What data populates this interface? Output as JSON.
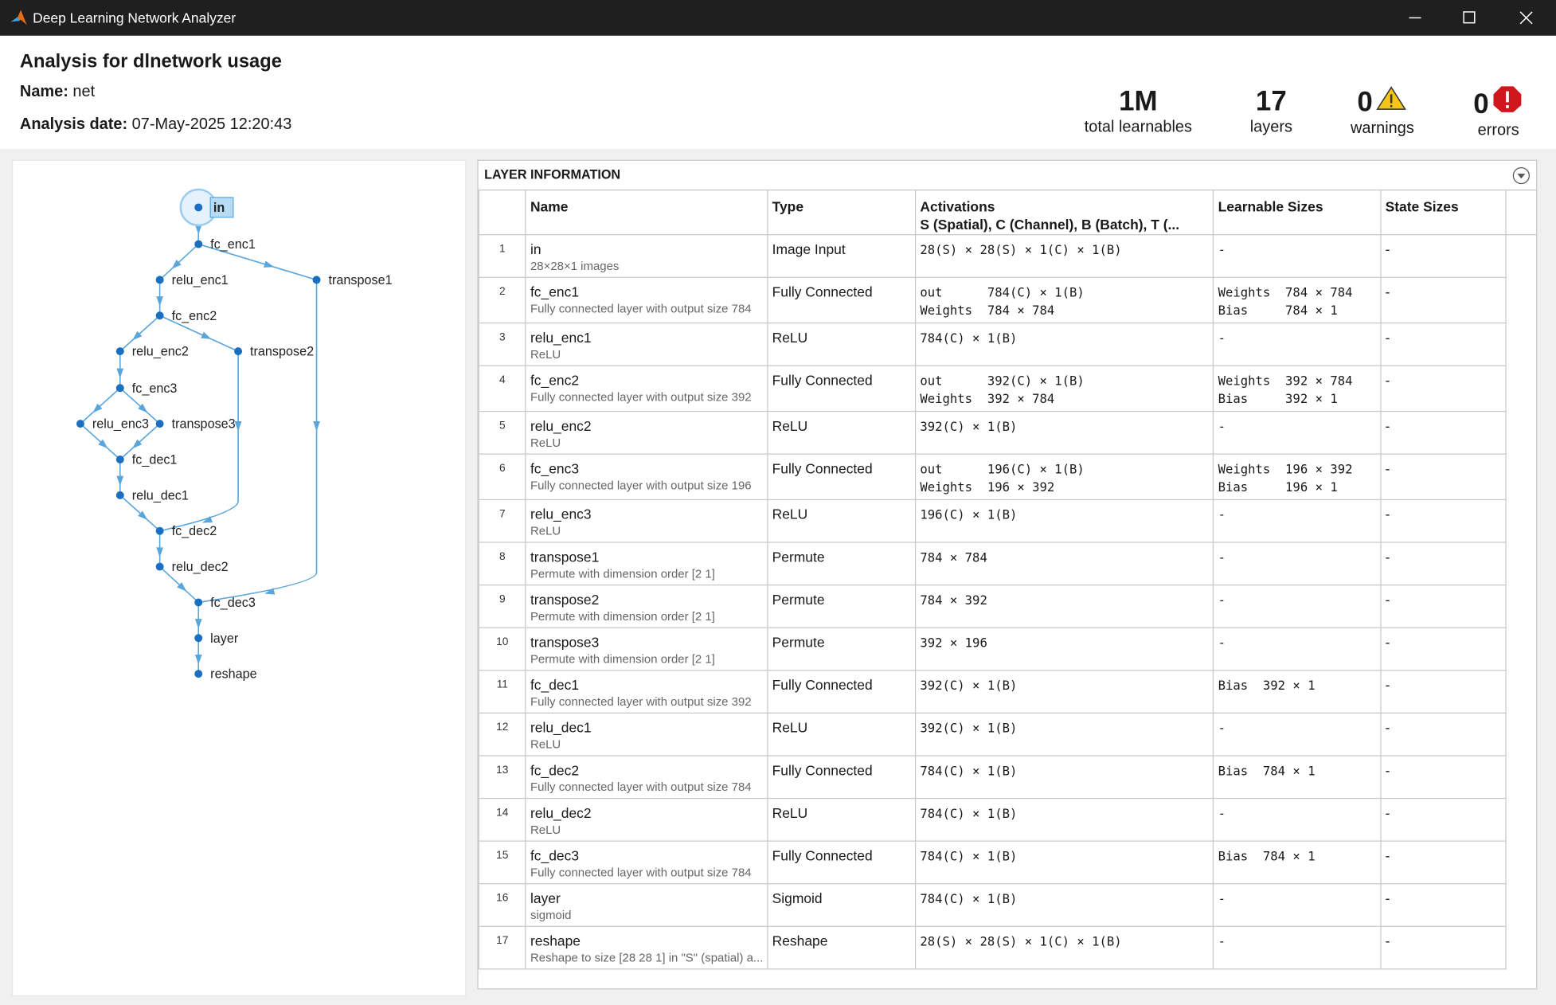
{
  "window": {
    "title": "Deep Learning Network Analyzer"
  },
  "header": {
    "title": "Analysis for dlnetwork usage",
    "name_label": "Name:",
    "name_value": "net",
    "date_label": "Analysis date:",
    "date_value": "07-May-2025 12:20:43"
  },
  "summary": [
    {
      "value": "1M",
      "label": "total learnables"
    },
    {
      "value": "17",
      "label": "layers"
    },
    {
      "value": "0",
      "label": "warnings"
    },
    {
      "value": "0",
      "label": "errors"
    }
  ],
  "graph": {
    "nodes": [
      "in",
      "fc_enc1",
      "relu_enc1",
      "transpose1",
      "fc_enc2",
      "relu_enc2",
      "transpose2",
      "fc_enc3",
      "relu_enc3",
      "transpose3",
      "fc_dec1",
      "relu_dec1",
      "fc_dec2",
      "relu_dec2",
      "fc_dec3",
      "layer",
      "reshape"
    ]
  },
  "table": {
    "title": "LAYER INFORMATION",
    "columns": {
      "name": "Name",
      "type": "Type",
      "activations": "Activations",
      "activations_sub": "S (Spatial), C (Channel), B (Batch), T (...",
      "learnables": "Learnable Sizes",
      "states": "State Sizes"
    },
    "rows": [
      {
        "index": 1,
        "name": "in",
        "description": "28×28×1 images",
        "type": "Image Input",
        "activations": [
          "28(S) × 28(S) × 1(C) × 1(B)"
        ],
        "learnables": [
          "-"
        ],
        "states": "-"
      },
      {
        "index": 2,
        "name": "fc_enc1",
        "description": "Fully connected layer with output size 784",
        "type": "Fully Connected",
        "activations": [
          "out      784(C) × 1(B)",
          "Weights  784 × 784"
        ],
        "learnables": [
          "Weights  784 × 784",
          "Bias     784 × 1"
        ],
        "states": "-"
      },
      {
        "index": 3,
        "name": "relu_enc1",
        "description": "ReLU",
        "type": "ReLU",
        "activations": [
          "784(C) × 1(B)"
        ],
        "learnables": [
          "-"
        ],
        "states": "-"
      },
      {
        "index": 4,
        "name": "fc_enc2",
        "description": "Fully connected layer with output size 392",
        "type": "Fully Connected",
        "activations": [
          "out      392(C) × 1(B)",
          "Weights  392 × 784"
        ],
        "learnables": [
          "Weights  392 × 784",
          "Bias     392 × 1"
        ],
        "states": "-"
      },
      {
        "index": 5,
        "name": "relu_enc2",
        "description": "ReLU",
        "type": "ReLU",
        "activations": [
          "392(C) × 1(B)"
        ],
        "learnables": [
          "-"
        ],
        "states": "-"
      },
      {
        "index": 6,
        "name": "fc_enc3",
        "description": "Fully connected layer with output size 196",
        "type": "Fully Connected",
        "activations": [
          "out      196(C) × 1(B)",
          "Weights  196 × 392"
        ],
        "learnables": [
          "Weights  196 × 392",
          "Bias     196 × 1"
        ],
        "states": "-"
      },
      {
        "index": 7,
        "name": "relu_enc3",
        "description": "ReLU",
        "type": "ReLU",
        "activations": [
          "196(C) × 1(B)"
        ],
        "learnables": [
          "-"
        ],
        "states": "-"
      },
      {
        "index": 8,
        "name": "transpose1",
        "description": "Permute with dimension order [2 1]",
        "type": "Permute",
        "activations": [
          "784 × 784"
        ],
        "learnables": [
          "-"
        ],
        "states": "-"
      },
      {
        "index": 9,
        "name": "transpose2",
        "description": "Permute with dimension order [2 1]",
        "type": "Permute",
        "activations": [
          "784 × 392"
        ],
        "learnables": [
          "-"
        ],
        "states": "-"
      },
      {
        "index": 10,
        "name": "transpose3",
        "description": "Permute with dimension order [2 1]",
        "type": "Permute",
        "activations": [
          "392 × 196"
        ],
        "learnables": [
          "-"
        ],
        "states": "-"
      },
      {
        "index": 11,
        "name": "fc_dec1",
        "description": "Fully connected layer with output size 392",
        "type": "Fully Connected",
        "activations": [
          "392(C) × 1(B)"
        ],
        "learnables": [
          "Bias  392 × 1"
        ],
        "states": "-"
      },
      {
        "index": 12,
        "name": "relu_dec1",
        "description": "ReLU",
        "type": "ReLU",
        "activations": [
          "392(C) × 1(B)"
        ],
        "learnables": [
          "-"
        ],
        "states": "-"
      },
      {
        "index": 13,
        "name": "fc_dec2",
        "description": "Fully connected layer with output size 784",
        "type": "Fully Connected",
        "activations": [
          "784(C) × 1(B)"
        ],
        "learnables": [
          "Bias  784 × 1"
        ],
        "states": "-"
      },
      {
        "index": 14,
        "name": "relu_dec2",
        "description": "ReLU",
        "type": "ReLU",
        "activations": [
          "784(C) × 1(B)"
        ],
        "learnables": [
          "-"
        ],
        "states": "-"
      },
      {
        "index": 15,
        "name": "fc_dec3",
        "description": "Fully connected layer with output size 784",
        "type": "Fully Connected",
        "activations": [
          "784(C) × 1(B)"
        ],
        "learnables": [
          "Bias  784 × 1"
        ],
        "states": "-"
      },
      {
        "index": 16,
        "name": "layer",
        "description": "sigmoid",
        "type": "Sigmoid",
        "activations": [
          "784(C) × 1(B)"
        ],
        "learnables": [
          "-"
        ],
        "states": "-"
      },
      {
        "index": 17,
        "name": "reshape",
        "description": "Reshape to size [28 28 1] in \"S\" (spatial) a...",
        "type": "Reshape",
        "activations": [
          "28(S) × 28(S) × 1(C) × 1(B)"
        ],
        "learnables": [
          "-"
        ],
        "states": "-"
      }
    ]
  }
}
